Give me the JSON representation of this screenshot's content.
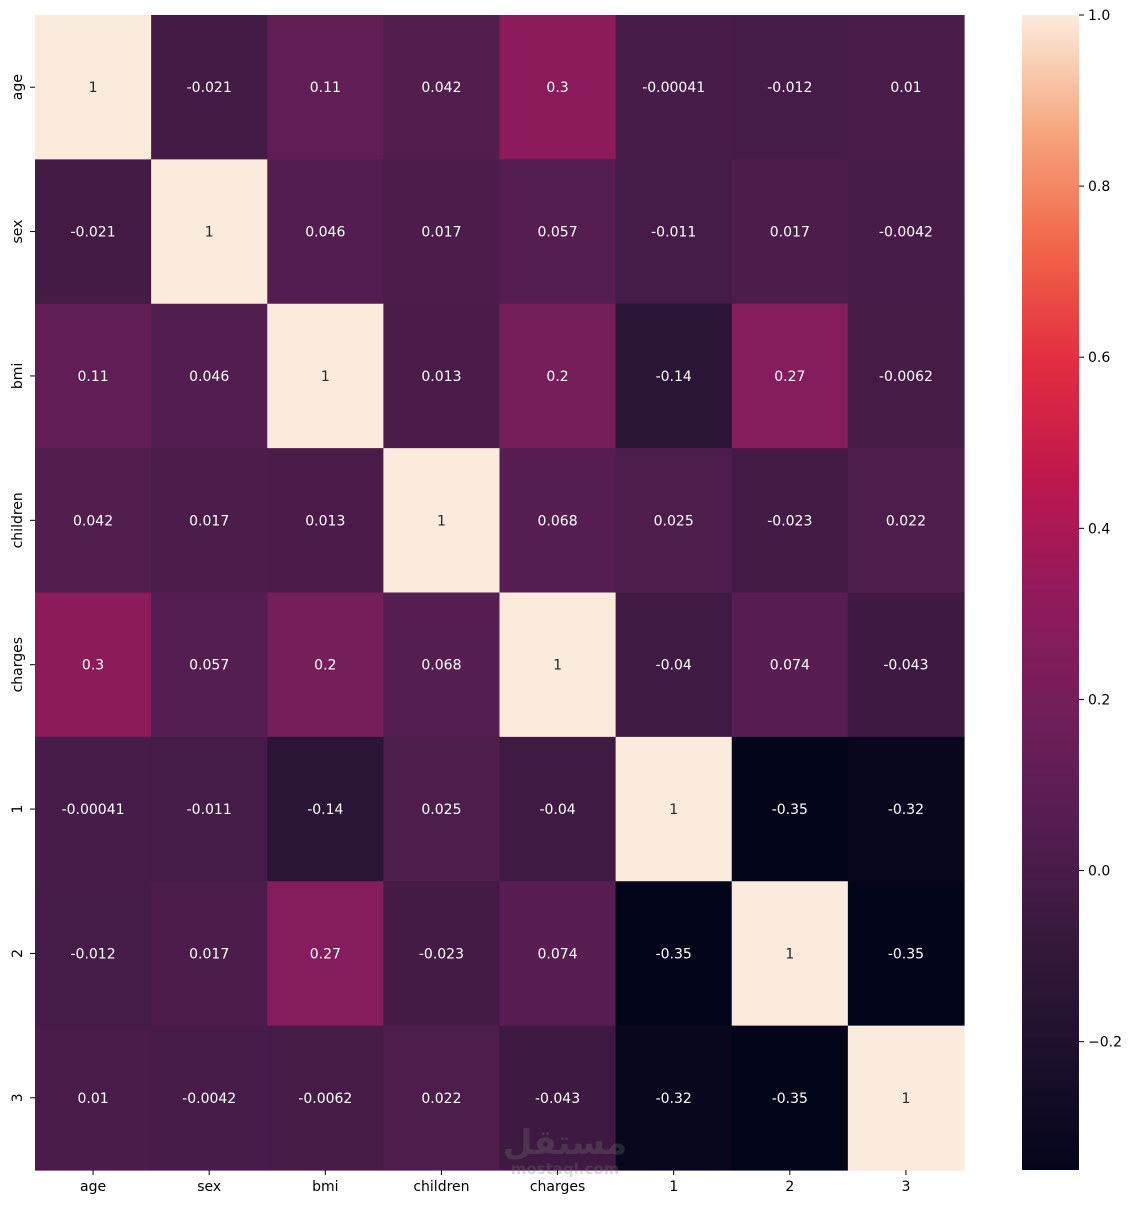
{
  "chart_data": {
    "type": "heatmap",
    "title": "",
    "xlabel": "",
    "ylabel": "",
    "labels": [
      "age",
      "sex",
      "bmi",
      "children",
      "charges",
      "1",
      "2",
      "3"
    ],
    "x_tick_labels": [
      "age",
      "sex",
      "bmi",
      "children",
      "charges",
      "1",
      "2",
      "3"
    ],
    "y_tick_labels": [
      "age",
      "sex",
      "bmi",
      "children",
      "charges",
      "1",
      "2",
      "3"
    ],
    "matrix": [
      [
        1,
        -0.021,
        0.11,
        0.042,
        0.3,
        -0.00041,
        -0.012,
        0.01
      ],
      [
        -0.021,
        1,
        0.046,
        0.017,
        0.057,
        -0.011,
        0.017,
        -0.0042
      ],
      [
        0.11,
        0.046,
        1,
        0.013,
        0.2,
        -0.14,
        0.27,
        -0.0062
      ],
      [
        0.042,
        0.017,
        0.013,
        1,
        0.068,
        0.025,
        -0.023,
        0.022
      ],
      [
        0.3,
        0.057,
        0.2,
        0.068,
        1,
        -0.04,
        0.074,
        -0.043
      ],
      [
        -0.00041,
        -0.011,
        -0.14,
        0.025,
        -0.04,
        1,
        -0.35,
        -0.32
      ],
      [
        -0.012,
        0.017,
        0.27,
        -0.023,
        0.074,
        -0.35,
        1,
        -0.35
      ],
      [
        0.01,
        -0.0042,
        -0.0062,
        0.022,
        -0.043,
        -0.32,
        -0.35,
        1
      ]
    ],
    "annotations": [
      [
        "1",
        "-0.021",
        "0.11",
        "0.042",
        "0.3",
        "-0.00041",
        "-0.012",
        "0.01"
      ],
      [
        "-0.021",
        "1",
        "0.046",
        "0.017",
        "0.057",
        "-0.011",
        "0.017",
        "-0.0042"
      ],
      [
        "0.11",
        "0.046",
        "1",
        "0.013",
        "0.2",
        "-0.14",
        "0.27",
        "-0.0062"
      ],
      [
        "0.042",
        "0.017",
        "0.013",
        "1",
        "0.068",
        "0.025",
        "-0.023",
        "0.022"
      ],
      [
        "0.3",
        "0.057",
        "0.2",
        "0.068",
        "1",
        "-0.04",
        "0.074",
        "-0.043"
      ],
      [
        "-0.00041",
        "-0.011",
        "-0.14",
        "0.025",
        "-0.04",
        "1",
        "-0.35",
        "-0.32"
      ],
      [
        "-0.012",
        "0.017",
        "0.27",
        "-0.023",
        "0.074",
        "-0.35",
        "1",
        "-0.35"
      ],
      [
        "0.01",
        "-0.0042",
        "-0.0062",
        "0.022",
        "-0.043",
        "-0.32",
        "-0.35",
        "1"
      ]
    ],
    "colormap": "rocket",
    "colorbar": {
      "vmin": -0.35,
      "vmax": 1.0,
      "ticks": [
        -0.2,
        0.0,
        0.2,
        0.4,
        0.6,
        0.8,
        1.0
      ],
      "tick_labels": [
        "−0.2",
        "0.0",
        "0.2",
        "0.4",
        "0.6",
        "0.8",
        "1.0"
      ],
      "location": "right"
    },
    "grid": false
  },
  "watermark": {
    "text_arabic": "مستقل",
    "text_latin": "mostaql.com"
  }
}
